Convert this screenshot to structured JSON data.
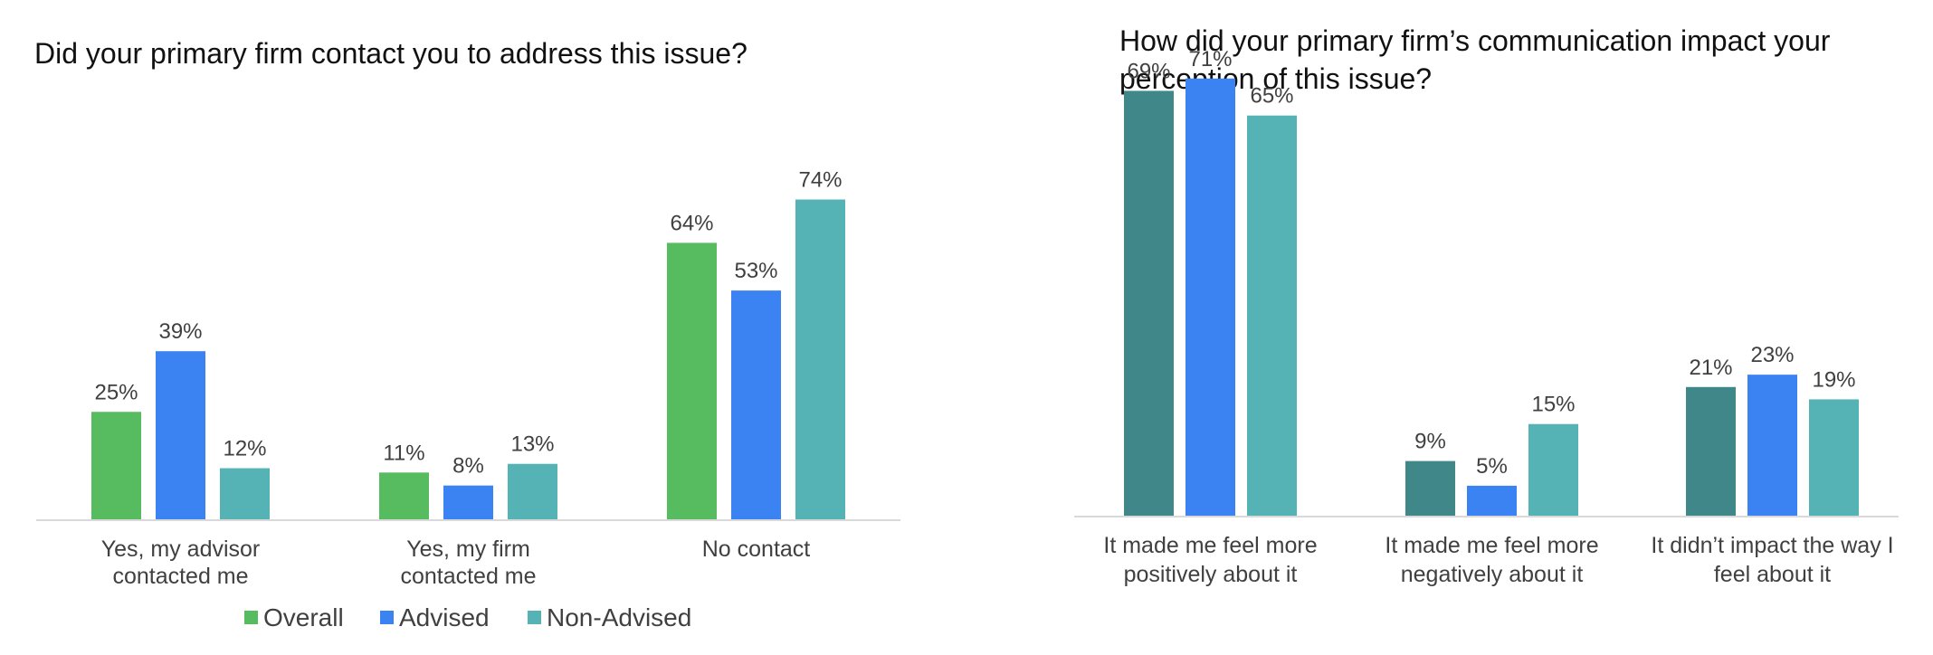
{
  "chart_data": [
    {
      "type": "bar",
      "title": "Did your primary firm contact you to address this issue?",
      "categories": [
        [
          "Yes, my advisor",
          "contacted me"
        ],
        [
          "Yes, my firm",
          "contacted me"
        ],
        [
          "No contact"
        ]
      ],
      "series": [
        {
          "name": "Overall",
          "color": "#57bb5f",
          "values": [
            25,
            11,
            64
          ],
          "labels": [
            "25%",
            "11%",
            "64%"
          ]
        },
        {
          "name": "Advised",
          "color": "#3b82f3",
          "values": [
            39,
            8,
            53
          ],
          "labels": [
            "39%",
            "8%",
            "53%"
          ]
        },
        {
          "name": "Non-Advised",
          "color": "#55b2b5",
          "values": [
            12,
            13,
            74
          ],
          "labels": [
            "12%",
            "13%",
            "74%"
          ]
        }
      ],
      "ylim": [
        0,
        80
      ],
      "grid": false,
      "legend": "bottom"
    },
    {
      "type": "bar",
      "title": "How did your primary firm’s communication impact your perception of this issue?",
      "categories": [
        [
          "It made me feel more",
          "positively about it"
        ],
        [
          "It made me feel more",
          "negatively about it"
        ],
        [
          "It didn’t impact the way I",
          "feel about it"
        ]
      ],
      "series": [
        {
          "color": "#40878a",
          "values": [
            69,
            9,
            21
          ],
          "labels": [
            "69%",
            "9%",
            "21%"
          ]
        },
        {
          "color": "#3b82f3",
          "values": [
            71,
            5,
            23
          ],
          "labels": [
            "71%",
            "5%",
            "23%"
          ]
        },
        {
          "color": "#55b2b5",
          "values": [
            65,
            15,
            19
          ],
          "labels": [
            "65%",
            "15%",
            "19%"
          ]
        }
      ],
      "ylim": [
        0,
        80
      ],
      "grid": false,
      "legend": "none"
    }
  ]
}
